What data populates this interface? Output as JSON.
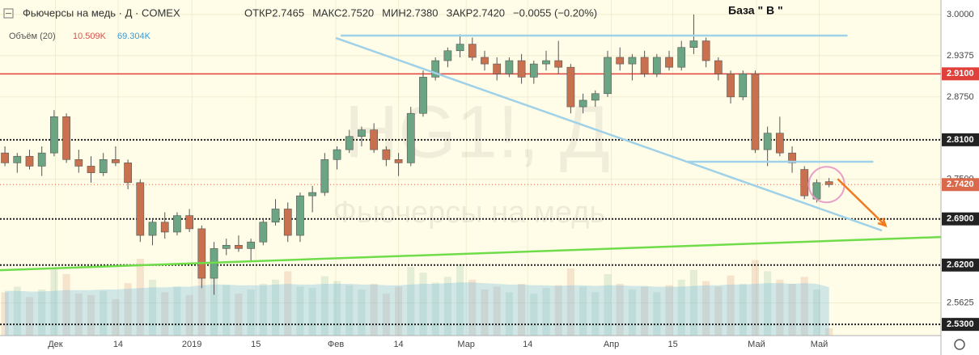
{
  "chart_data": {
    "type": "candlestick",
    "title": "Фьючерсы на медь · Д · COMEX",
    "ohlc_legend": [
      {
        "label": "ОТКР",
        "value": "2.7465"
      },
      {
        "label": "МАКС",
        "value": "2.7520"
      },
      {
        "label": "МИН",
        "value": "2.7380"
      },
      {
        "label": "ЗАКР",
        "value": "2.7420"
      }
    ],
    "change": "−0.0055 (−0.20%)",
    "volume_title": "Объём (20)",
    "volume_label": "10.509K",
    "volume_ma_label": "69.304K",
    "annotation": "База \" В \"",
    "watermark": "HG1!, Д",
    "watermark_sub": "Фьючерсы на медь",
    "up_color": "#6ba583",
    "down_color": "#c9714f",
    "background": "#fffde8",
    "xlim": [
      -0.4,
      76.1
    ],
    "ylim": [
      2.513,
      3.022
    ],
    "volume_lim": [
      0,
      480
    ],
    "xticks": [
      {
        "value": 4.1,
        "label": "Дек"
      },
      {
        "value": 9.2,
        "label": "14"
      },
      {
        "value": 15.2,
        "label": "2019"
      },
      {
        "value": 20.4,
        "label": "15"
      },
      {
        "value": 26.9,
        "label": "Фев"
      },
      {
        "value": 32,
        "label": "14"
      },
      {
        "value": 37.5,
        "label": "Мар"
      },
      {
        "value": 42.5,
        "label": "14"
      },
      {
        "value": 49.3,
        "label": "Апр"
      },
      {
        "value": 54.3,
        "label": "15"
      },
      {
        "value": 61.1,
        "label": "Май"
      },
      {
        "value": 66.2,
        "label": "Май"
      }
    ],
    "yticks": [
      {
        "value": 3,
        "label": "3.0000"
      },
      {
        "value": 2.9375,
        "label": "2.9375"
      },
      {
        "value": 2.875,
        "label": "2.8750"
      },
      {
        "value": 2.75,
        "label": "2.7500"
      },
      {
        "value": 2.5625,
        "label": "2.5625"
      }
    ],
    "levels": [
      {
        "value": 2.91,
        "label": "2.9100",
        "color": "#e0403a",
        "dash": false
      },
      {
        "value": 2.81,
        "label": "2.8100",
        "color": "#222222",
        "dash": true
      },
      {
        "value": 2.69,
        "label": "2.6900",
        "color": "#222222",
        "dash": true
      },
      {
        "value": 2.62,
        "label": "2.6200",
        "color": "#222222",
        "dash": true
      },
      {
        "value": 2.53,
        "label": "2.5300",
        "color": "#222222",
        "dash": true
      }
    ],
    "last_price": {
      "value": 2.742,
      "label": "2.7420",
      "color": "#d9694a"
    },
    "grid": true,
    "ohlc": [
      [
        2.79,
        2.8,
        2.77,
        2.775
      ],
      [
        2.775,
        2.79,
        2.76,
        2.785
      ],
      [
        2.785,
        2.795,
        2.765,
        2.77
      ],
      [
        2.77,
        2.8,
        2.755,
        2.79
      ],
      [
        2.79,
        2.855,
        2.785,
        2.845
      ],
      [
        2.845,
        2.85,
        2.775,
        2.78
      ],
      [
        2.78,
        2.795,
        2.76,
        2.77
      ],
      [
        2.77,
        2.785,
        2.745,
        2.76
      ],
      [
        2.76,
        2.79,
        2.755,
        2.78
      ],
      [
        2.78,
        2.8,
        2.77,
        2.775
      ],
      [
        2.775,
        2.78,
        2.735,
        2.745
      ],
      [
        2.745,
        2.75,
        2.655,
        2.665
      ],
      [
        2.665,
        2.69,
        2.65,
        2.685
      ],
      [
        2.685,
        2.7,
        2.66,
        2.67
      ],
      [
        2.67,
        2.7,
        2.665,
        2.695
      ],
      [
        2.695,
        2.705,
        2.67,
        2.675
      ],
      [
        2.675,
        2.68,
        2.585,
        2.6
      ],
      [
        2.6,
        2.655,
        2.575,
        2.645
      ],
      [
        2.645,
        2.66,
        2.635,
        2.65
      ],
      [
        2.65,
        2.665,
        2.64,
        2.645
      ],
      [
        2.645,
        2.66,
        2.625,
        2.655
      ],
      [
        2.655,
        2.69,
        2.65,
        2.685
      ],
      [
        2.685,
        2.72,
        2.68,
        2.705
      ],
      [
        2.705,
        2.715,
        2.655,
        2.665
      ],
      [
        2.665,
        2.73,
        2.655,
        2.725
      ],
      [
        2.725,
        2.74,
        2.7,
        2.73
      ],
      [
        2.73,
        2.79,
        2.725,
        2.78
      ],
      [
        2.78,
        2.8,
        2.765,
        2.795
      ],
      [
        2.795,
        2.825,
        2.79,
        2.815
      ],
      [
        2.815,
        2.83,
        2.8,
        2.825
      ],
      [
        2.825,
        2.835,
        2.79,
        2.795
      ],
      [
        2.795,
        2.8,
        2.77,
        2.78
      ],
      [
        2.78,
        2.79,
        2.755,
        2.775
      ],
      [
        2.775,
        2.86,
        2.77,
        2.85
      ],
      [
        2.85,
        2.915,
        2.845,
        2.905
      ],
      [
        2.905,
        2.935,
        2.9,
        2.93
      ],
      [
        2.93,
        2.95,
        2.92,
        2.945
      ],
      [
        2.945,
        2.97,
        2.935,
        2.955
      ],
      [
        2.955,
        2.965,
        2.93,
        2.935
      ],
      [
        2.935,
        2.945,
        2.915,
        2.925
      ],
      [
        2.925,
        2.935,
        2.9,
        2.91
      ],
      [
        2.91,
        2.935,
        2.905,
        2.93
      ],
      [
        2.93,
        2.94,
        2.895,
        2.905
      ],
      [
        2.905,
        2.93,
        2.895,
        2.925
      ],
      [
        2.925,
        2.945,
        2.915,
        2.93
      ],
      [
        2.93,
        2.96,
        2.91,
        2.92
      ],
      [
        2.92,
        2.925,
        2.85,
        2.86
      ],
      [
        2.86,
        2.88,
        2.85,
        2.87
      ],
      [
        2.87,
        2.885,
        2.86,
        2.88
      ],
      [
        2.88,
        2.945,
        2.875,
        2.935
      ],
      [
        2.935,
        2.95,
        2.915,
        2.925
      ],
      [
        2.925,
        2.94,
        2.9,
        2.935
      ],
      [
        2.935,
        2.945,
        2.905,
        2.91
      ],
      [
        2.91,
        2.94,
        2.905,
        2.935
      ],
      [
        2.935,
        2.945,
        2.915,
        2.92
      ],
      [
        2.92,
        2.96,
        2.915,
        2.95
      ],
      [
        2.95,
        3.0,
        2.94,
        2.96
      ],
      [
        2.96,
        2.965,
        2.92,
        2.93
      ],
      [
        2.93,
        2.935,
        2.9,
        2.91
      ],
      [
        2.91,
        2.915,
        2.865,
        2.875
      ],
      [
        2.875,
        2.915,
        2.87,
        2.91
      ],
      [
        2.91,
        2.915,
        2.79,
        2.795
      ],
      [
        2.795,
        2.83,
        2.77,
        2.82
      ],
      [
        2.82,
        2.845,
        2.785,
        2.79
      ],
      [
        2.79,
        2.8,
        2.76,
        2.775
      ],
      [
        2.765,
        2.77,
        2.72,
        2.725
      ],
      [
        2.72,
        2.75,
        2.715,
        2.745
      ],
      [
        2.7465,
        2.752,
        2.738,
        2.742
      ]
    ],
    "volume": [
      62,
      70,
      55,
      66,
      95,
      88,
      60,
      58,
      64,
      52,
      75,
      110,
      80,
      62,
      70,
      58,
      120,
      105,
      72,
      60,
      66,
      74,
      80,
      92,
      70,
      68,
      85,
      78,
      72,
      66,
      74,
      60,
      70,
      98,
      90,
      76,
      84,
      102,
      80,
      66,
      70,
      62,
      74,
      60,
      68,
      72,
      96,
      70,
      62,
      88,
      74,
      66,
      70,
      62,
      72,
      80,
      94,
      78,
      70,
      86,
      74,
      108,
      92,
      80,
      74,
      84,
      66,
      10.509
    ],
    "volume_ma": [
      64,
      64,
      63,
      63,
      64,
      65,
      65,
      65,
      66,
      66,
      67,
      68,
      69,
      69,
      70,
      70,
      72,
      73,
      73,
      72,
      72,
      72,
      73,
      74,
      73,
      73,
      74,
      74,
      74,
      73,
      73,
      72,
      72,
      73,
      74,
      74,
      75,
      76,
      76,
      75,
      74,
      73,
      73,
      72,
      72,
      71,
      72,
      72,
      71,
      72,
      72,
      71,
      71,
      70,
      70,
      70,
      71,
      72,
      72,
      73,
      73,
      74,
      75,
      75,
      74,
      75,
      74,
      69.304
    ],
    "trend_lines": [
      {
        "x": [
          27.3,
          68.5
        ],
        "y": [
          2.968,
          2.968
        ],
        "color": "#9fd1e8"
      },
      {
        "x": [
          26.9,
          71.3
        ],
        "y": [
          2.9644,
          2.6724
        ],
        "color": "#9fd1e8"
      },
      {
        "x": [
          55.5,
          70.6
        ],
        "y": [
          2.7767,
          2.7767
        ],
        "color": "#9fd1e8"
      },
      {
        "x": [
          -0.4,
          76.1
        ],
        "y": [
          2.6122,
          2.6625
        ],
        "color": "#6fdc4a"
      }
    ],
    "arrow": {
      "x": [
        67.7,
        71.6
      ],
      "y": [
        2.7506,
        2.6797
      ],
      "color": "#f07a1e"
    },
    "ellipse": {
      "x": 66.8,
      "y": 2.742,
      "color": "#e9a0c8"
    }
  }
}
